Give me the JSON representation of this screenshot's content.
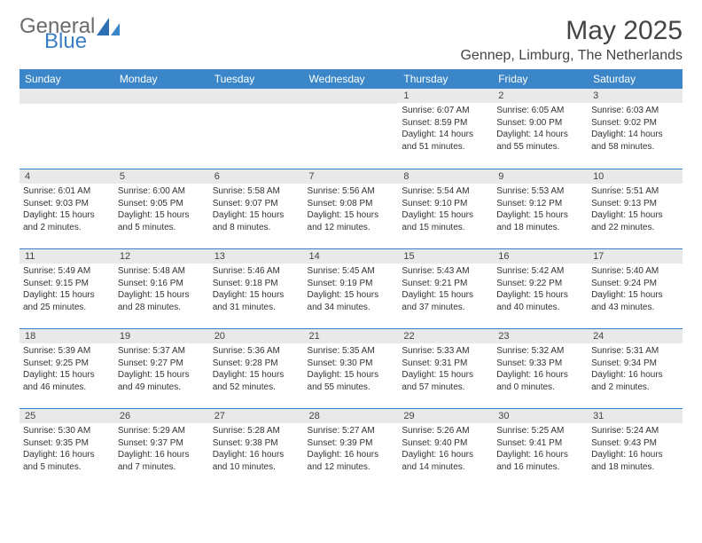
{
  "logo": {
    "textA": "General",
    "textB": "Blue"
  },
  "header": {
    "month_title": "May 2025",
    "location": "Gennep, Limburg, The Netherlands"
  },
  "weekdays": [
    "Sunday",
    "Monday",
    "Tuesday",
    "Wednesday",
    "Thursday",
    "Friday",
    "Saturday"
  ],
  "colors": {
    "header_bg": "#3a86c8",
    "daynum_bg": "#e9e9e9",
    "cell_border": "#3a7fc4",
    "logo_gray": "#6b6b6b",
    "logo_blue": "#3a7fc4"
  },
  "calendar": {
    "rows": 5,
    "cols": 7,
    "fontsize_dayhead": 12,
    "fontsize_daynum": 11,
    "fontsize_body": 10
  },
  "weeks": [
    [
      {
        "day": "",
        "sunrise": "",
        "sunset": "",
        "daylight": ""
      },
      {
        "day": "",
        "sunrise": "",
        "sunset": "",
        "daylight": ""
      },
      {
        "day": "",
        "sunrise": "",
        "sunset": "",
        "daylight": ""
      },
      {
        "day": "",
        "sunrise": "",
        "sunset": "",
        "daylight": ""
      },
      {
        "day": "1",
        "sunrise": "Sunrise: 6:07 AM",
        "sunset": "Sunset: 8:59 PM",
        "daylight": "Daylight: 14 hours and 51 minutes."
      },
      {
        "day": "2",
        "sunrise": "Sunrise: 6:05 AM",
        "sunset": "Sunset: 9:00 PM",
        "daylight": "Daylight: 14 hours and 55 minutes."
      },
      {
        "day": "3",
        "sunrise": "Sunrise: 6:03 AM",
        "sunset": "Sunset: 9:02 PM",
        "daylight": "Daylight: 14 hours and 58 minutes."
      }
    ],
    [
      {
        "day": "4",
        "sunrise": "Sunrise: 6:01 AM",
        "sunset": "Sunset: 9:03 PM",
        "daylight": "Daylight: 15 hours and 2 minutes."
      },
      {
        "day": "5",
        "sunrise": "Sunrise: 6:00 AM",
        "sunset": "Sunset: 9:05 PM",
        "daylight": "Daylight: 15 hours and 5 minutes."
      },
      {
        "day": "6",
        "sunrise": "Sunrise: 5:58 AM",
        "sunset": "Sunset: 9:07 PM",
        "daylight": "Daylight: 15 hours and 8 minutes."
      },
      {
        "day": "7",
        "sunrise": "Sunrise: 5:56 AM",
        "sunset": "Sunset: 9:08 PM",
        "daylight": "Daylight: 15 hours and 12 minutes."
      },
      {
        "day": "8",
        "sunrise": "Sunrise: 5:54 AM",
        "sunset": "Sunset: 9:10 PM",
        "daylight": "Daylight: 15 hours and 15 minutes."
      },
      {
        "day": "9",
        "sunrise": "Sunrise: 5:53 AM",
        "sunset": "Sunset: 9:12 PM",
        "daylight": "Daylight: 15 hours and 18 minutes."
      },
      {
        "day": "10",
        "sunrise": "Sunrise: 5:51 AM",
        "sunset": "Sunset: 9:13 PM",
        "daylight": "Daylight: 15 hours and 22 minutes."
      }
    ],
    [
      {
        "day": "11",
        "sunrise": "Sunrise: 5:49 AM",
        "sunset": "Sunset: 9:15 PM",
        "daylight": "Daylight: 15 hours and 25 minutes."
      },
      {
        "day": "12",
        "sunrise": "Sunrise: 5:48 AM",
        "sunset": "Sunset: 9:16 PM",
        "daylight": "Daylight: 15 hours and 28 minutes."
      },
      {
        "day": "13",
        "sunrise": "Sunrise: 5:46 AM",
        "sunset": "Sunset: 9:18 PM",
        "daylight": "Daylight: 15 hours and 31 minutes."
      },
      {
        "day": "14",
        "sunrise": "Sunrise: 5:45 AM",
        "sunset": "Sunset: 9:19 PM",
        "daylight": "Daylight: 15 hours and 34 minutes."
      },
      {
        "day": "15",
        "sunrise": "Sunrise: 5:43 AM",
        "sunset": "Sunset: 9:21 PM",
        "daylight": "Daylight: 15 hours and 37 minutes."
      },
      {
        "day": "16",
        "sunrise": "Sunrise: 5:42 AM",
        "sunset": "Sunset: 9:22 PM",
        "daylight": "Daylight: 15 hours and 40 minutes."
      },
      {
        "day": "17",
        "sunrise": "Sunrise: 5:40 AM",
        "sunset": "Sunset: 9:24 PM",
        "daylight": "Daylight: 15 hours and 43 minutes."
      }
    ],
    [
      {
        "day": "18",
        "sunrise": "Sunrise: 5:39 AM",
        "sunset": "Sunset: 9:25 PM",
        "daylight": "Daylight: 15 hours and 46 minutes."
      },
      {
        "day": "19",
        "sunrise": "Sunrise: 5:37 AM",
        "sunset": "Sunset: 9:27 PM",
        "daylight": "Daylight: 15 hours and 49 minutes."
      },
      {
        "day": "20",
        "sunrise": "Sunrise: 5:36 AM",
        "sunset": "Sunset: 9:28 PM",
        "daylight": "Daylight: 15 hours and 52 minutes."
      },
      {
        "day": "21",
        "sunrise": "Sunrise: 5:35 AM",
        "sunset": "Sunset: 9:30 PM",
        "daylight": "Daylight: 15 hours and 55 minutes."
      },
      {
        "day": "22",
        "sunrise": "Sunrise: 5:33 AM",
        "sunset": "Sunset: 9:31 PM",
        "daylight": "Daylight: 15 hours and 57 minutes."
      },
      {
        "day": "23",
        "sunrise": "Sunrise: 5:32 AM",
        "sunset": "Sunset: 9:33 PM",
        "daylight": "Daylight: 16 hours and 0 minutes."
      },
      {
        "day": "24",
        "sunrise": "Sunrise: 5:31 AM",
        "sunset": "Sunset: 9:34 PM",
        "daylight": "Daylight: 16 hours and 2 minutes."
      }
    ],
    [
      {
        "day": "25",
        "sunrise": "Sunrise: 5:30 AM",
        "sunset": "Sunset: 9:35 PM",
        "daylight": "Daylight: 16 hours and 5 minutes."
      },
      {
        "day": "26",
        "sunrise": "Sunrise: 5:29 AM",
        "sunset": "Sunset: 9:37 PM",
        "daylight": "Daylight: 16 hours and 7 minutes."
      },
      {
        "day": "27",
        "sunrise": "Sunrise: 5:28 AM",
        "sunset": "Sunset: 9:38 PM",
        "daylight": "Daylight: 16 hours and 10 minutes."
      },
      {
        "day": "28",
        "sunrise": "Sunrise: 5:27 AM",
        "sunset": "Sunset: 9:39 PM",
        "daylight": "Daylight: 16 hours and 12 minutes."
      },
      {
        "day": "29",
        "sunrise": "Sunrise: 5:26 AM",
        "sunset": "Sunset: 9:40 PM",
        "daylight": "Daylight: 16 hours and 14 minutes."
      },
      {
        "day": "30",
        "sunrise": "Sunrise: 5:25 AM",
        "sunset": "Sunset: 9:41 PM",
        "daylight": "Daylight: 16 hours and 16 minutes."
      },
      {
        "day": "31",
        "sunrise": "Sunrise: 5:24 AM",
        "sunset": "Sunset: 9:43 PM",
        "daylight": "Daylight: 16 hours and 18 minutes."
      }
    ]
  ]
}
